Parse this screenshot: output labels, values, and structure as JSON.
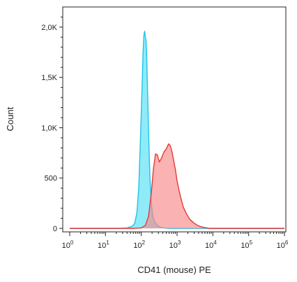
{
  "chart_data": {
    "type": "area",
    "title": "",
    "xlabel": "CD41 (mouse) PE",
    "ylabel": "Count",
    "x_scale": "log",
    "xlim": [
      1,
      1000000
    ],
    "ylim": [
      0,
      2200
    ],
    "grid": false,
    "legend": "none",
    "y_ticks": [
      {
        "value": 0,
        "label": "0"
      },
      {
        "value": 500,
        "label": "500"
      },
      {
        "value": 1000,
        "label": "1,0K"
      },
      {
        "value": 1500,
        "label": "1,5K"
      },
      {
        "value": 2000,
        "label": "2,0K"
      }
    ],
    "x_ticks": [
      {
        "value": 1,
        "base": "10",
        "exp": "0"
      },
      {
        "value": 10,
        "base": "10",
        "exp": "1"
      },
      {
        "value": 100,
        "base": "10",
        "exp": "2"
      },
      {
        "value": 1000,
        "base": "10",
        "exp": "3"
      },
      {
        "value": 10000,
        "base": "10",
        "exp": "4"
      },
      {
        "value": 100000,
        "base": "10",
        "exp": "5"
      },
      {
        "value": 1000000,
        "base": "10",
        "exp": "6"
      }
    ],
    "series": [
      {
        "color": "#1fc3ea",
        "fill": "#54e0f6",
        "x": [
          1,
          20,
          40,
          55,
          65,
          75,
          85,
          95,
          105,
          112,
          118,
          124,
          130,
          136,
          142,
          150,
          160,
          175,
          190,
          210,
          240,
          280,
          330,
          400,
          600,
          1000000
        ],
        "y": [
          0,
          0,
          5,
          20,
          50,
          150,
          400,
          900,
          1400,
          1750,
          1920,
          1960,
          1900,
          1870,
          1700,
          1350,
          950,
          500,
          250,
          120,
          60,
          30,
          15,
          5,
          0,
          0
        ]
      },
      {
        "color": "#e53935",
        "fill": "#f7898a",
        "x": [
          1,
          60,
          100,
          130,
          160,
          190,
          220,
          250,
          280,
          320,
          370,
          430,
          500,
          580,
          650,
          720,
          800,
          900,
          1000,
          1150,
          1300,
          1500,
          1800,
          2200,
          2800,
          3500,
          4500,
          6000,
          8000,
          1000000
        ],
        "y": [
          0,
          0,
          5,
          30,
          120,
          350,
          600,
          740,
          730,
          660,
          700,
          760,
          790,
          840,
          820,
          760,
          680,
          580,
          470,
          370,
          290,
          210,
          150,
          95,
          60,
          35,
          18,
          8,
          0,
          0
        ]
      }
    ]
  }
}
